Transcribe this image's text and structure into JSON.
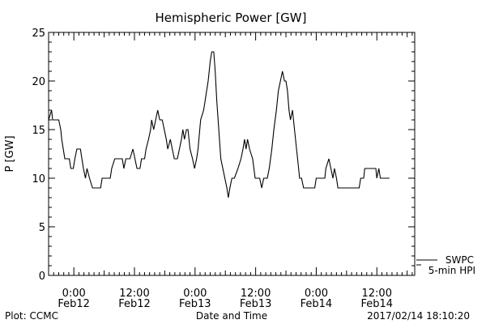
{
  "chart_data": {
    "type": "line",
    "title": "Hemispheric Power [GW]",
    "xlabel": "Date and Time",
    "ylabel": "P [GW]",
    "ylim": [
      0,
      25
    ],
    "yticks": [
      0,
      5,
      10,
      15,
      20,
      25
    ],
    "xlim_hours": [
      -5,
      67.5
    ],
    "xticks": [
      {
        "hour": 0,
        "time": "0:00",
        "date": "Feb12"
      },
      {
        "hour": 12,
        "time": "12:00",
        "date": "Feb12"
      },
      {
        "hour": 24,
        "time": "0:00",
        "date": "Feb13"
      },
      {
        "hour": 36,
        "time": "12:00",
        "date": "Feb13"
      },
      {
        "hour": 48,
        "time": "0:00",
        "date": "Feb14"
      },
      {
        "hour": 60,
        "time": "12:00",
        "date": "Feb14"
      }
    ],
    "grid": false,
    "legend_position": "bottom-right",
    "series": [
      {
        "name": "SWPC",
        "color": "#000000",
        "points": [
          [
            -5,
            16
          ],
          [
            -4.4,
            17
          ],
          [
            -4.2,
            16
          ],
          [
            -3,
            16
          ],
          [
            -2.6,
            15
          ],
          [
            -2.4,
            14
          ],
          [
            -2.1,
            13
          ],
          [
            -1.8,
            12
          ],
          [
            -0.9,
            12
          ],
          [
            -0.6,
            11
          ],
          [
            -0.1,
            11
          ],
          [
            0.2,
            12
          ],
          [
            0.6,
            13
          ],
          [
            1.3,
            13
          ],
          [
            1.6,
            12
          ],
          [
            1.9,
            11
          ],
          [
            2.3,
            10
          ],
          [
            2.6,
            11
          ],
          [
            3.1,
            10
          ],
          [
            3.7,
            9
          ],
          [
            5.3,
            9
          ],
          [
            5.6,
            10
          ],
          [
            7.2,
            10
          ],
          [
            7.5,
            11
          ],
          [
            8.1,
            12
          ],
          [
            9.6,
            12
          ],
          [
            9.9,
            11
          ],
          [
            10.3,
            12
          ],
          [
            11.1,
            12
          ],
          [
            11.7,
            13
          ],
          [
            12.1,
            12
          ],
          [
            12.5,
            11
          ],
          [
            13.1,
            11
          ],
          [
            13.4,
            12
          ],
          [
            14.0,
            12
          ],
          [
            14.3,
            13
          ],
          [
            14.8,
            14
          ],
          [
            15.2,
            15
          ],
          [
            15.4,
            16
          ],
          [
            15.8,
            15
          ],
          [
            16.2,
            16
          ],
          [
            16.6,
            17
          ],
          [
            17.0,
            16
          ],
          [
            17.5,
            16
          ],
          [
            17.9,
            15
          ],
          [
            18.3,
            14
          ],
          [
            18.6,
            13
          ],
          [
            19.1,
            14
          ],
          [
            19.5,
            13
          ],
          [
            19.9,
            12
          ],
          [
            20.5,
            12
          ],
          [
            20.9,
            13
          ],
          [
            21.3,
            14
          ],
          [
            21.6,
            15
          ],
          [
            21.9,
            14
          ],
          [
            22.3,
            15
          ],
          [
            22.6,
            15
          ],
          [
            23.0,
            13
          ],
          [
            23.5,
            12
          ],
          [
            23.9,
            11
          ],
          [
            24.3,
            12
          ],
          [
            24.6,
            13
          ],
          [
            25.1,
            16
          ],
          [
            25.7,
            17
          ],
          [
            26.0,
            18
          ],
          [
            26.3,
            19
          ],
          [
            26.6,
            20
          ],
          [
            27.0,
            22
          ],
          [
            27.3,
            23
          ],
          [
            27.7,
            23
          ],
          [
            28.0,
            21
          ],
          [
            28.3,
            18
          ],
          [
            28.7,
            15
          ],
          [
            29.1,
            12
          ],
          [
            29.5,
            11
          ],
          [
            29.9,
            10
          ],
          [
            30.3,
            9
          ],
          [
            30.6,
            8
          ],
          [
            30.9,
            9
          ],
          [
            31.3,
            10
          ],
          [
            31.8,
            10
          ],
          [
            32.5,
            11
          ],
          [
            33.1,
            12
          ],
          [
            33.5,
            13
          ],
          [
            33.8,
            14
          ],
          [
            34.1,
            13
          ],
          [
            34.4,
            14
          ],
          [
            34.8,
            13
          ],
          [
            35.4,
            12
          ],
          [
            35.9,
            10
          ],
          [
            36.3,
            10
          ],
          [
            36.8,
            10
          ],
          [
            37.2,
            9
          ],
          [
            37.6,
            10
          ],
          [
            38.3,
            10
          ],
          [
            38.7,
            11
          ],
          [
            39.2,
            13
          ],
          [
            39.6,
            15
          ],
          [
            40.1,
            17
          ],
          [
            40.5,
            19
          ],
          [
            40.9,
            20
          ],
          [
            41.3,
            21
          ],
          [
            41.7,
            20
          ],
          [
            42.0,
            20
          ],
          [
            42.3,
            19
          ],
          [
            42.6,
            17
          ],
          [
            42.9,
            16
          ],
          [
            43.3,
            17
          ],
          [
            43.7,
            15
          ],
          [
            44.1,
            13
          ],
          [
            44.3,
            12
          ],
          [
            44.7,
            10
          ],
          [
            45.1,
            10
          ],
          [
            45.5,
            9
          ],
          [
            47.7,
            9
          ],
          [
            48.0,
            10
          ],
          [
            49.7,
            10
          ],
          [
            49.9,
            11
          ],
          [
            50.5,
            12
          ],
          [
            50.9,
            11
          ],
          [
            51.3,
            10
          ],
          [
            51.6,
            11
          ],
          [
            52.0,
            10
          ],
          [
            52.3,
            9
          ],
          [
            56.5,
            9
          ],
          [
            56.8,
            10
          ],
          [
            57.4,
            10
          ],
          [
            57.6,
            11
          ],
          [
            59.8,
            11
          ],
          [
            60.0,
            10
          ],
          [
            60.4,
            11
          ],
          [
            60.7,
            10
          ],
          [
            61.2,
            10
          ],
          [
            62.5,
            10
          ]
        ]
      },
      {
        "name": "5-min HPI",
        "color": "#000000",
        "points": []
      }
    ],
    "annotations": [
      "Plot: CCMC",
      "2017/02/14 18:10:20"
    ]
  }
}
